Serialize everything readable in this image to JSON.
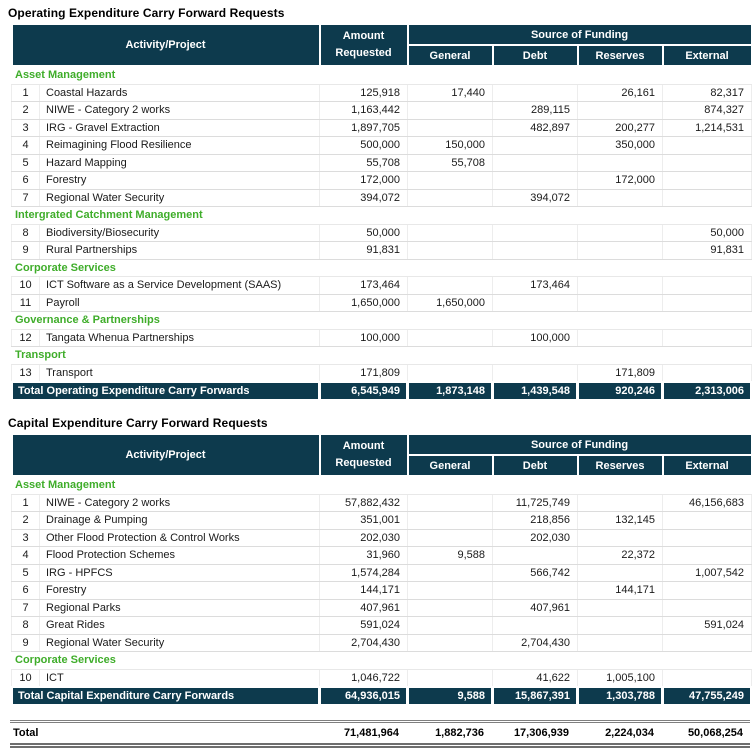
{
  "colors": {
    "header_bg": "#0d3a4d",
    "section_green": "#3fad2a",
    "row_border": "#dcdcdc",
    "header_text": "#ffffff"
  },
  "columns": {
    "activity": "Activity/Project",
    "amount_line1": "Amount",
    "amount_line2": "Requested",
    "funding_group": "Source of Funding",
    "funding": [
      "General",
      "Debt",
      "Reserves",
      "External"
    ]
  },
  "tables": [
    {
      "title": "Operating Expenditure Carry Forward Requests",
      "rows": [
        {
          "type": "section",
          "label": "Asset Management"
        },
        {
          "type": "item",
          "num": "1",
          "name": "Coastal Hazards",
          "values": [
            "125,918",
            "17,440",
            "",
            "26,161",
            "82,317"
          ]
        },
        {
          "type": "item",
          "num": "2",
          "name": "NIWE - Category 2 works",
          "values": [
            "1,163,442",
            "",
            "289,115",
            "",
            "874,327"
          ]
        },
        {
          "type": "item",
          "num": "3",
          "name": "IRG -  Gravel Extraction",
          "values": [
            "1,897,705",
            "",
            "482,897",
            "200,277",
            "1,214,531"
          ]
        },
        {
          "type": "item",
          "num": "4",
          "name": "Reimagining Flood Resilience",
          "values": [
            "500,000",
            "150,000",
            "",
            "350,000",
            ""
          ]
        },
        {
          "type": "item",
          "num": "5",
          "name": "Hazard Mapping",
          "values": [
            "55,708",
            "55,708",
            "",
            "",
            ""
          ]
        },
        {
          "type": "item",
          "num": "6",
          "name": "Forestry",
          "values": [
            "172,000",
            "",
            "",
            "172,000",
            ""
          ]
        },
        {
          "type": "item",
          "num": "7",
          "name": "Regional Water Security",
          "values": [
            "394,072",
            "",
            "394,072",
            "",
            ""
          ]
        },
        {
          "type": "section",
          "label": "Intergrated Catchment Management"
        },
        {
          "type": "item",
          "num": "8",
          "name": "Biodiversity/Biosecurity",
          "values": [
            "50,000",
            "",
            "",
            "",
            "50,000"
          ]
        },
        {
          "type": "item",
          "num": "9",
          "name": "Rural Partnerships",
          "values": [
            "91,831",
            "",
            "",
            "",
            "91,831"
          ]
        },
        {
          "type": "section",
          "label": "Corporate Services"
        },
        {
          "type": "item",
          "num": "10",
          "name": "ICT Software as a Service Development (SAAS)",
          "values": [
            "173,464",
            "",
            "173,464",
            "",
            ""
          ]
        },
        {
          "type": "item",
          "num": "11",
          "name": "Payroll",
          "values": [
            "1,650,000",
            "1,650,000",
            "",
            "",
            ""
          ]
        },
        {
          "type": "section",
          "label": "Governance & Partnerships"
        },
        {
          "type": "item",
          "num": "12",
          "name": "Tangata Whenua Partnerships",
          "values": [
            "100,000",
            "",
            "100,000",
            "",
            ""
          ]
        },
        {
          "type": "section",
          "label": "Transport"
        },
        {
          "type": "item",
          "num": "13",
          "name": "Transport",
          "values": [
            "171,809",
            "",
            "",
            "171,809",
            ""
          ]
        }
      ],
      "total": {
        "label": "Total Operating Expenditure Carry Forwards",
        "values": [
          "6,545,949",
          "1,873,148",
          "1,439,548",
          "920,246",
          "2,313,006"
        ]
      }
    },
    {
      "title": "Capital Expenditure Carry Forward Requests",
      "rows": [
        {
          "type": "section",
          "label": "Asset Management"
        },
        {
          "type": "item",
          "num": "1",
          "name": "NIWE - Category 2 works",
          "values": [
            "57,882,432",
            "",
            "11,725,749",
            "",
            "46,156,683"
          ]
        },
        {
          "type": "item",
          "num": "2",
          "name": "Drainage & Pumping",
          "values": [
            "351,001",
            "",
            "218,856",
            "132,145",
            ""
          ]
        },
        {
          "type": "item",
          "num": "3",
          "name": "Other Flood Protection & Control Works",
          "values": [
            "202,030",
            "",
            "202,030",
            "",
            ""
          ]
        },
        {
          "type": "item",
          "num": "4",
          "name": "Flood Protection Schemes",
          "values": [
            "31,960",
            "9,588",
            "",
            "22,372",
            ""
          ]
        },
        {
          "type": "item",
          "num": "5",
          "name": "IRG - HPFCS",
          "values": [
            "1,574,284",
            "",
            "566,742",
            "",
            "1,007,542"
          ]
        },
        {
          "type": "item",
          "num": "6",
          "name": "Forestry",
          "values": [
            "144,171",
            "",
            "",
            "144,171",
            ""
          ]
        },
        {
          "type": "item",
          "num": "7",
          "name": "Regional Parks",
          "values": [
            "407,961",
            "",
            "407,961",
            "",
            ""
          ]
        },
        {
          "type": "item",
          "num": "8",
          "name": "Great Rides",
          "values": [
            "591,024",
            "",
            "",
            "",
            "591,024"
          ]
        },
        {
          "type": "item",
          "num": "9",
          "name": "Regional Water Security",
          "values": [
            "2,704,430",
            "",
            "2,704,430",
            "",
            ""
          ]
        },
        {
          "type": "section",
          "label": "Corporate Services"
        },
        {
          "type": "item",
          "num": "10",
          "name": "ICT",
          "values": [
            "1,046,722",
            "",
            "41,622",
            "1,005,100",
            ""
          ]
        }
      ],
      "total": {
        "label": "Total Capital Expenditure Carry Forwards",
        "values": [
          "64,936,015",
          "9,588",
          "15,867,391",
          "1,303,788",
          "47,755,249"
        ]
      }
    }
  ],
  "grand_total": {
    "label": "Total",
    "values": [
      "71,481,964",
      "1,882,736",
      "17,306,939",
      "2,224,034",
      "50,068,254"
    ]
  }
}
